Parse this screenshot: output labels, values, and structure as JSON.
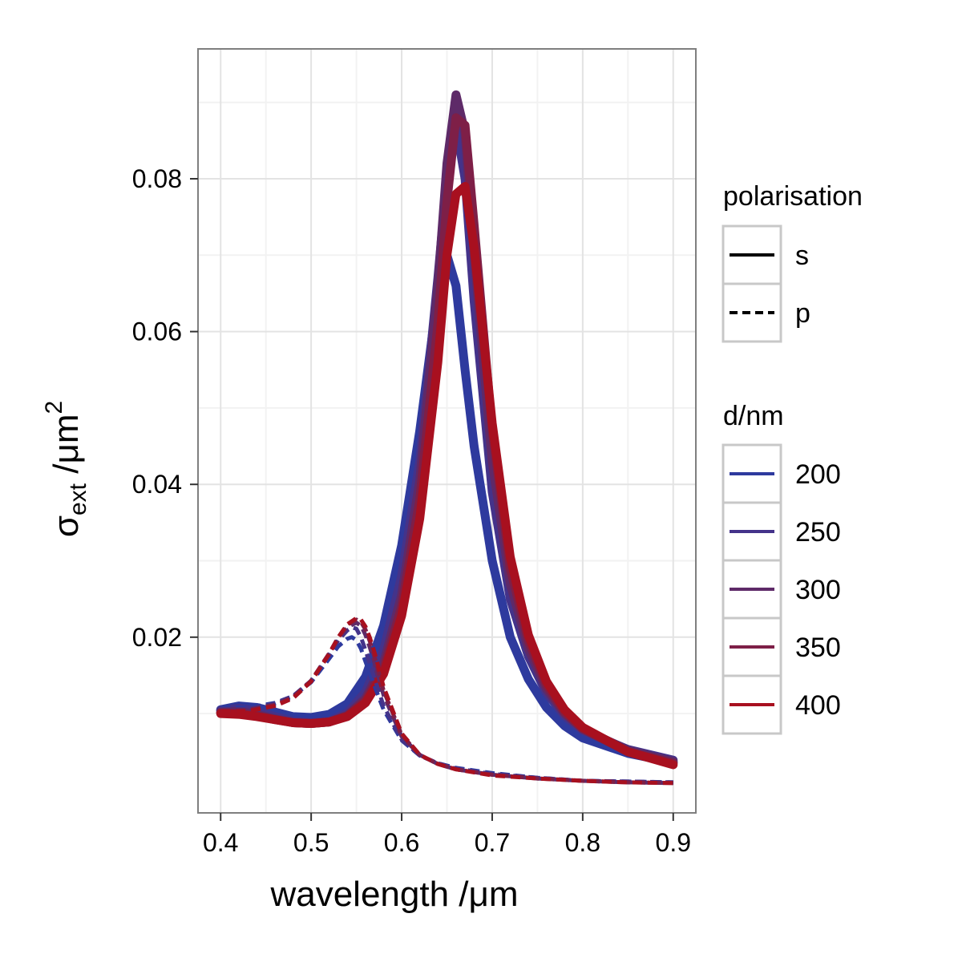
{
  "chart_data": {
    "type": "line",
    "xlabel_main": "wavelength /",
    "xlabel_unit": "μm",
    "ylabel_main": "σ",
    "ylabel_sub": "ext",
    "ylabel_unit": " /μm",
    "ylabel_sup": "2",
    "xlim": [
      0.375,
      0.925
    ],
    "ylim": [
      -0.003,
      0.097
    ],
    "x_ticks": [
      0.4,
      0.5,
      0.6,
      0.7,
      0.8,
      0.9
    ],
    "x_tick_labels": [
      "0.4",
      "0.5",
      "0.6",
      "0.7",
      "0.8",
      "0.9"
    ],
    "y_ticks": [
      0.02,
      0.04,
      0.06,
      0.08
    ],
    "y_tick_labels": [
      "0.02",
      "0.04",
      "0.06",
      "0.08"
    ],
    "grid": true,
    "legend_position": "right",
    "legend_polarisation": {
      "title": "polarisation",
      "items": [
        {
          "label": "s",
          "linetype": "solid"
        },
        {
          "label": "p",
          "linetype": "dashed"
        }
      ]
    },
    "legend_d": {
      "title": "d/nm",
      "items": [
        {
          "label": "200",
          "color": "#2e3a9e"
        },
        {
          "label": "250",
          "color": "#44338a"
        },
        {
          "label": "300",
          "color": "#5e2a68"
        },
        {
          "label": "350",
          "color": "#7e1f47"
        },
        {
          "label": "400",
          "color": "#a8101f"
        }
      ]
    },
    "series": [
      {
        "polarisation": "s",
        "d": "200",
        "color": "#2e3a9e",
        "x": [
          0.4,
          0.42,
          0.44,
          0.46,
          0.48,
          0.5,
          0.52,
          0.54,
          0.56,
          0.58,
          0.6,
          0.62,
          0.64,
          0.65,
          0.66,
          0.67,
          0.68,
          0.7,
          0.72,
          0.74,
          0.76,
          0.78,
          0.8,
          0.85,
          0.9
        ],
        "y": [
          0.0105,
          0.011,
          0.0108,
          0.0102,
          0.0096,
          0.0095,
          0.0099,
          0.0113,
          0.0148,
          0.0215,
          0.032,
          0.047,
          0.065,
          0.07,
          0.066,
          0.055,
          0.045,
          0.03,
          0.02,
          0.0145,
          0.0108,
          0.0084,
          0.0068,
          0.0048,
          0.0036
        ]
      },
      {
        "polarisation": "s",
        "d": "250",
        "color": "#44338a",
        "x": [
          0.4,
          0.42,
          0.44,
          0.46,
          0.48,
          0.5,
          0.52,
          0.54,
          0.56,
          0.58,
          0.6,
          0.62,
          0.64,
          0.65,
          0.66,
          0.67,
          0.68,
          0.7,
          0.72,
          0.74,
          0.76,
          0.78,
          0.8,
          0.85,
          0.9
        ],
        "y": [
          0.0104,
          0.0107,
          0.0103,
          0.0096,
          0.009,
          0.0088,
          0.009,
          0.0101,
          0.0128,
          0.0183,
          0.028,
          0.043,
          0.067,
          0.08,
          0.087,
          0.08,
          0.064,
          0.039,
          0.025,
          0.0175,
          0.0127,
          0.0097,
          0.0078,
          0.0053,
          0.0039
        ]
      },
      {
        "polarisation": "s",
        "d": "300",
        "color": "#5e2a68",
        "x": [
          0.4,
          0.42,
          0.44,
          0.46,
          0.48,
          0.5,
          0.52,
          0.54,
          0.56,
          0.58,
          0.6,
          0.62,
          0.64,
          0.65,
          0.66,
          0.67,
          0.68,
          0.7,
          0.72,
          0.74,
          0.76,
          0.78,
          0.8,
          0.85,
          0.9
        ],
        "y": [
          0.0102,
          0.0103,
          0.0099,
          0.0093,
          0.0088,
          0.0087,
          0.0089,
          0.0098,
          0.012,
          0.0166,
          0.0255,
          0.0405,
          0.066,
          0.082,
          0.091,
          0.086,
          0.07,
          0.043,
          0.027,
          0.0185,
          0.0132,
          0.01,
          0.008,
          0.0052,
          0.0037
        ]
      },
      {
        "polarisation": "s",
        "d": "350",
        "color": "#7e1f47",
        "x": [
          0.4,
          0.42,
          0.44,
          0.46,
          0.48,
          0.5,
          0.52,
          0.54,
          0.56,
          0.58,
          0.6,
          0.62,
          0.64,
          0.65,
          0.66,
          0.67,
          0.68,
          0.7,
          0.72,
          0.74,
          0.76,
          0.78,
          0.8,
          0.85,
          0.9
        ],
        "y": [
          0.0101,
          0.01,
          0.0097,
          0.0092,
          0.0088,
          0.0087,
          0.0089,
          0.0097,
          0.0117,
          0.0158,
          0.024,
          0.038,
          0.061,
          0.077,
          0.088,
          0.087,
          0.074,
          0.047,
          0.029,
          0.0195,
          0.0137,
          0.0102,
          0.008,
          0.005,
          0.0035
        ]
      },
      {
        "polarisation": "s",
        "d": "400",
        "color": "#a8101f",
        "x": [
          0.4,
          0.42,
          0.44,
          0.46,
          0.48,
          0.5,
          0.52,
          0.54,
          0.56,
          0.58,
          0.6,
          0.62,
          0.64,
          0.65,
          0.66,
          0.67,
          0.68,
          0.7,
          0.72,
          0.74,
          0.76,
          0.78,
          0.8,
          0.85,
          0.9
        ],
        "y": [
          0.01,
          0.0099,
          0.0096,
          0.0092,
          0.0088,
          0.0087,
          0.0089,
          0.0096,
          0.0114,
          0.0152,
          0.0228,
          0.0355,
          0.056,
          0.07,
          0.078,
          0.079,
          0.071,
          0.048,
          0.0305,
          0.0203,
          0.0142,
          0.0105,
          0.0082,
          0.005,
          0.0033
        ]
      },
      {
        "polarisation": "p",
        "d": "200",
        "color": "#2e3a9e",
        "x": [
          0.4,
          0.43,
          0.46,
          0.48,
          0.5,
          0.52,
          0.53,
          0.54,
          0.545,
          0.55,
          0.555,
          0.56,
          0.57,
          0.58,
          0.6,
          0.62,
          0.64,
          0.66,
          0.7,
          0.75,
          0.8,
          0.85,
          0.9
        ],
        "y": [
          0.0108,
          0.0108,
          0.0114,
          0.0123,
          0.0141,
          0.0172,
          0.0188,
          0.0198,
          0.02,
          0.0196,
          0.0185,
          0.0168,
          0.0136,
          0.0105,
          0.0065,
          0.0045,
          0.0035,
          0.0029,
          0.0022,
          0.0016,
          0.0012,
          0.0011,
          0.001
        ]
      },
      {
        "polarisation": "p",
        "d": "250",
        "color": "#44338a",
        "x": [
          0.4,
          0.43,
          0.46,
          0.48,
          0.5,
          0.52,
          0.53,
          0.54,
          0.545,
          0.55,
          0.555,
          0.56,
          0.57,
          0.58,
          0.6,
          0.62,
          0.64,
          0.66,
          0.7,
          0.75,
          0.8,
          0.85,
          0.9
        ],
        "y": [
          0.0106,
          0.0106,
          0.0113,
          0.0123,
          0.0143,
          0.0177,
          0.0196,
          0.0209,
          0.0213,
          0.0211,
          0.02,
          0.0183,
          0.0146,
          0.011,
          0.0066,
          0.0045,
          0.0035,
          0.0028,
          0.0021,
          0.0016,
          0.0012,
          0.0011,
          0.001
        ]
      },
      {
        "polarisation": "p",
        "d": "300",
        "color": "#5e2a68",
        "x": [
          0.4,
          0.43,
          0.46,
          0.48,
          0.5,
          0.52,
          0.53,
          0.54,
          0.55,
          0.555,
          0.56,
          0.565,
          0.57,
          0.58,
          0.6,
          0.62,
          0.64,
          0.66,
          0.7,
          0.75,
          0.8,
          0.85,
          0.9
        ],
        "y": [
          0.0105,
          0.0105,
          0.0112,
          0.0122,
          0.0143,
          0.0178,
          0.0198,
          0.0213,
          0.0219,
          0.0215,
          0.0203,
          0.0186,
          0.0166,
          0.0124,
          0.007,
          0.0046,
          0.0034,
          0.0027,
          0.002,
          0.0015,
          0.0012,
          0.001,
          0.0009
        ]
      },
      {
        "polarisation": "p",
        "d": "350",
        "color": "#7e1f47",
        "x": [
          0.4,
          0.43,
          0.46,
          0.48,
          0.5,
          0.52,
          0.53,
          0.54,
          0.55,
          0.555,
          0.56,
          0.565,
          0.57,
          0.58,
          0.6,
          0.62,
          0.64,
          0.66,
          0.7,
          0.75,
          0.8,
          0.85,
          0.9
        ],
        "y": [
          0.0104,
          0.0104,
          0.0111,
          0.0121,
          0.0143,
          0.0179,
          0.02,
          0.0216,
          0.0223,
          0.022,
          0.021,
          0.0194,
          0.0174,
          0.013,
          0.0072,
          0.0046,
          0.0034,
          0.0027,
          0.002,
          0.0015,
          0.0012,
          0.001,
          0.0009
        ]
      },
      {
        "polarisation": "p",
        "d": "400",
        "color": "#a8101f",
        "x": [
          0.4,
          0.43,
          0.46,
          0.48,
          0.5,
          0.52,
          0.53,
          0.54,
          0.55,
          0.555,
          0.56,
          0.565,
          0.57,
          0.58,
          0.6,
          0.62,
          0.64,
          0.66,
          0.7,
          0.75,
          0.8,
          0.85,
          0.9
        ],
        "y": [
          0.0103,
          0.0103,
          0.011,
          0.012,
          0.0142,
          0.0178,
          0.02,
          0.0217,
          0.0225,
          0.0223,
          0.0214,
          0.0199,
          0.018,
          0.0135,
          0.0074,
          0.0046,
          0.0034,
          0.0027,
          0.0019,
          0.0015,
          0.0012,
          0.001,
          0.0009
        ]
      }
    ]
  }
}
